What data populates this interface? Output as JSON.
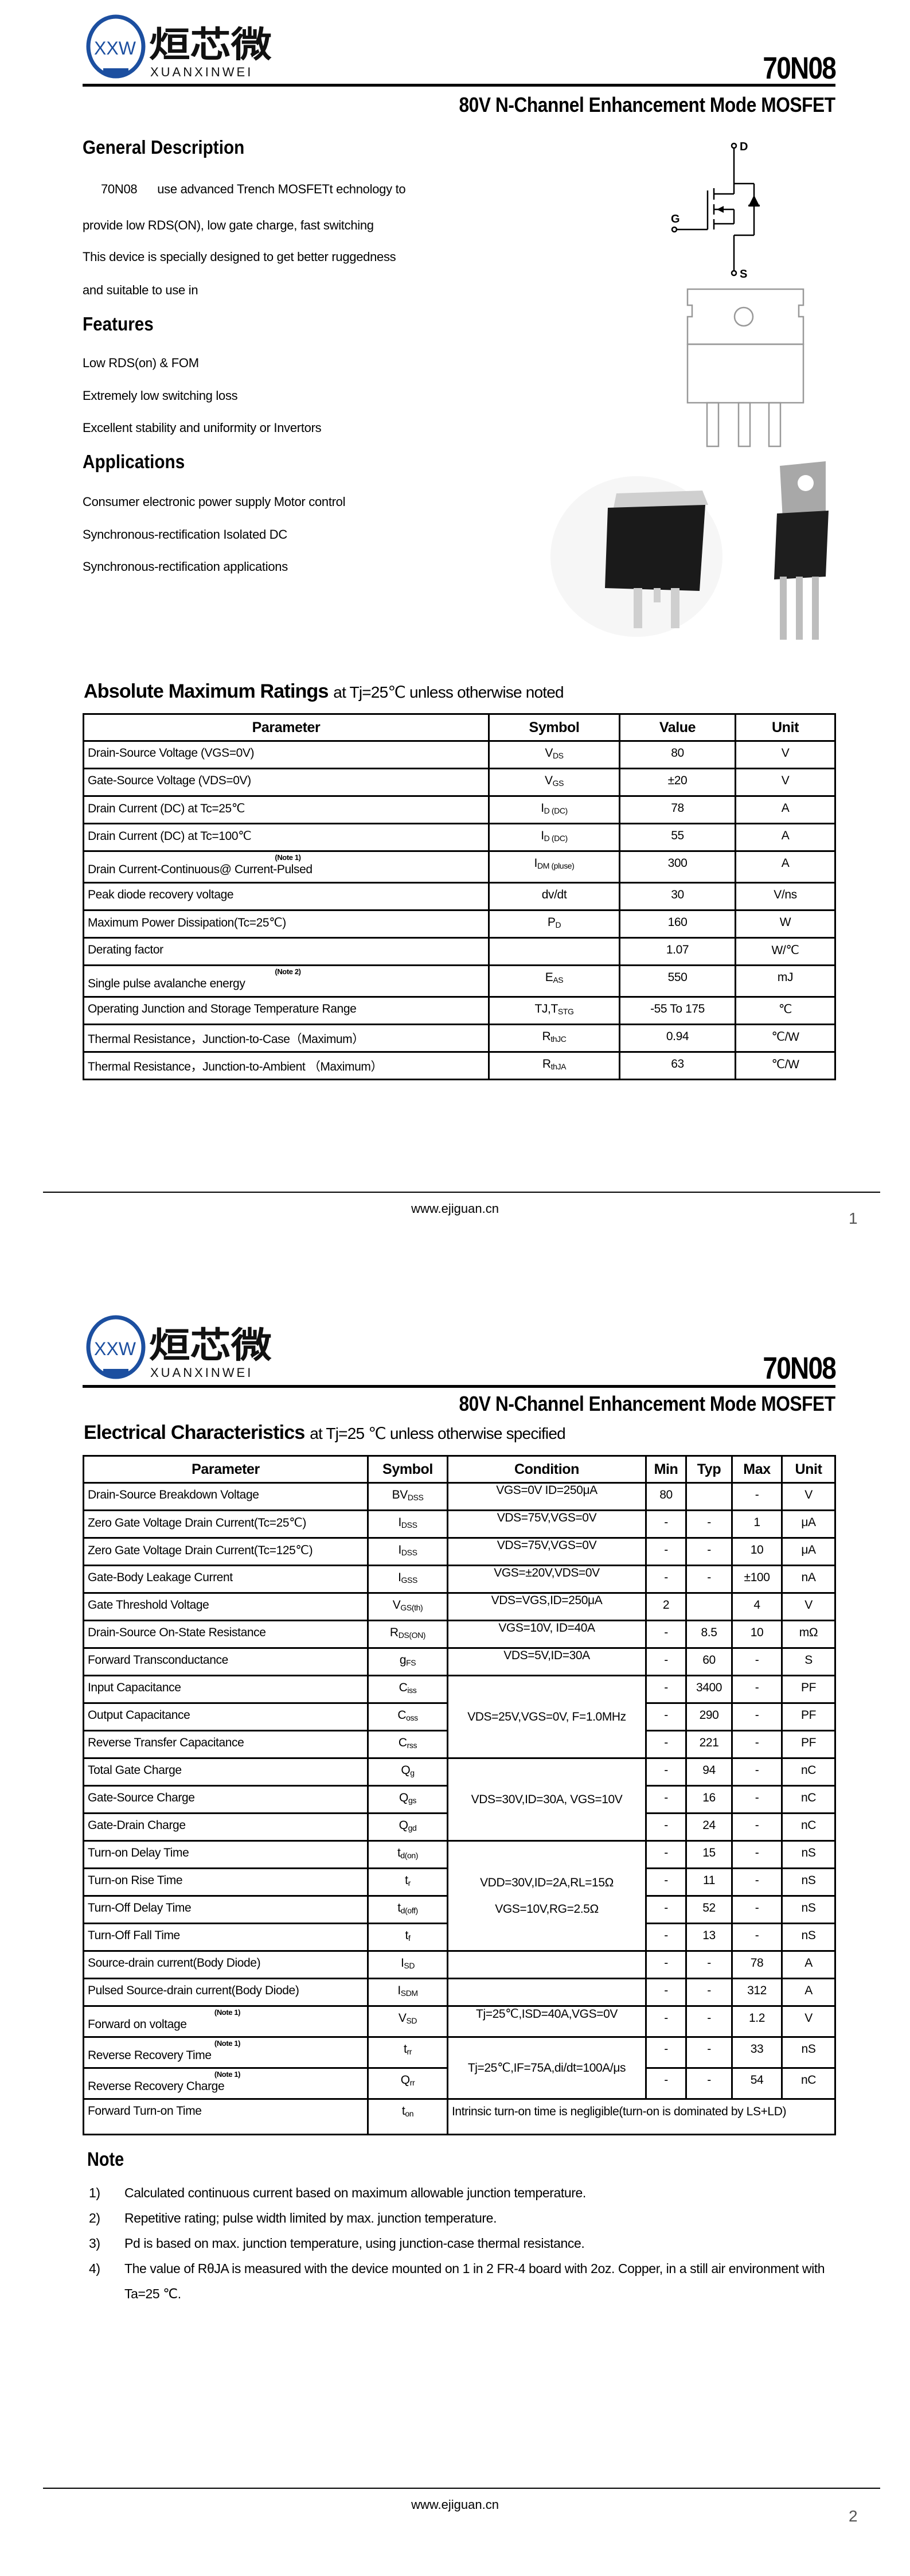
{
  "brand": {
    "logo_text": "XXW",
    "name_cn": "烜芯微",
    "name_en": "XUANXINWEI",
    "colors": {
      "blue": "#1c4fa0",
      "green": "#3aa845"
    }
  },
  "part_number": "70N08",
  "subtitle": "80V N-Channel Enhancement Mode MOSFET",
  "general": {
    "title": "General Description",
    "lines": [
      "70N08      use advanced Trench MOSFETt echnology to",
      "provide low RDS(ON), low gate charge, fast  switching",
      "This device is specially designed to get better ruggedness",
      "and suitable to use in"
    ]
  },
  "features": {
    "title": "Features",
    "items": [
      "Low RDS(on) & FOM",
      "Extremely low switching loss",
      "Excellent stability and uniformity or Invertors"
    ]
  },
  "applications": {
    "title": "Applications",
    "items": [
      "Consumer electronic power supply Motor control",
      "Synchronous-rectification Isolated DC",
      "Synchronous-rectification applications"
    ]
  },
  "schematic": {
    "d": "D",
    "g": "G",
    "s": "S"
  },
  "amr": {
    "title": "Absolute Maximum Ratings",
    "cond": "at Tj=25℃ unless otherwise noted",
    "headers": [
      "Parameter",
      "Symbol",
      "Value",
      "Unit"
    ],
    "rows": [
      {
        "param": "Drain-Source Voltage (VGS=0V)",
        "sym": "V",
        "sub": "DS",
        "value": "80",
        "unit": "V"
      },
      {
        "param": "Gate-Source Voltage (VDS=0V)",
        "sym": "V",
        "sub": "GS",
        "value": "±20",
        "unit": "V"
      },
      {
        "param": "Drain Current (DC) at Tc=25℃",
        "sym": "I",
        "sub": "D (DC)",
        "value": "78",
        "unit": "A"
      },
      {
        "param": "Drain Current (DC) at Tc=100℃",
        "sym": "I",
        "sub": "D (DC)",
        "value": "55",
        "unit": "A"
      },
      {
        "param": "Drain Current-Continuous@ Current-Pulsed",
        "note": "(Note 1)",
        "sym": "I",
        "sub": "DM (pluse)",
        "value": "300",
        "unit": "A"
      },
      {
        "param": "Peak diode recovery voltage",
        "sym": "dv/dt",
        "sub": "",
        "value": "30",
        "unit": "V/ns"
      },
      {
        "param": "Maximum Power Dissipation(Tc=25℃)",
        "sym": "P",
        "sub": "D",
        "value": "160",
        "unit": "W"
      },
      {
        "param": "Derating factor",
        "sym": "",
        "sub": "",
        "value": "1.07",
        "unit": "W/℃"
      },
      {
        "param": "Single pulse avalanche energy",
        "note": "(Note 2)",
        "sym": "E",
        "sub": "AS",
        "value": "550",
        "unit": "mJ"
      },
      {
        "param": "Operating Junction and Storage Temperature Range",
        "sym": "TJ,T",
        "sub": "STG",
        "value": "-55 To 175",
        "unit": "℃"
      },
      {
        "param": "Thermal Resistance，Junction-to-Case（Maximum）",
        "sym": "R",
        "sub": "thJC",
        "value": "0.94",
        "unit": "℃/W"
      },
      {
        "param": "Thermal Resistance，Junction-to-Ambient （Maximum）",
        "sym": "R",
        "sub": "thJA",
        "value": "63",
        "unit": "℃/W"
      }
    ]
  },
  "footer": {
    "url": "www.ejiguan.cn",
    "page1": "1",
    "page2": "2"
  },
  "ec": {
    "title": "Electrical Characteristics",
    "cond": "at Tj=25 ℃ unless otherwise specified",
    "headers": [
      "Parameter",
      "Symbol",
      "Condition",
      "Min",
      "Typ",
      "Max",
      "Unit"
    ],
    "rows": [
      {
        "param": "Drain-Source Breakdown Voltage",
        "sym": "BV",
        "sub": "DSS",
        "cond": "VGS=0V ID=250μA",
        "span": 1,
        "min": "80",
        "typ": "",
        "max": "-",
        "unit": "V"
      },
      {
        "param": "Zero Gate Voltage Drain Current(Tc=25℃)",
        "sym": "I",
        "sub": "DSS",
        "cond": "VDS=75V,VGS=0V",
        "span": 1,
        "min": "-",
        "typ": "-",
        "max": "1",
        "unit": "μA"
      },
      {
        "param": "Zero Gate Voltage Drain Current(Tc=125℃)",
        "sym": "I",
        "sub": "DSS",
        "cond": "VDS=75V,VGS=0V",
        "span": 1,
        "min": "-",
        "typ": "-",
        "max": "10",
        "unit": "μA"
      },
      {
        "param": "Gate-Body Leakage Current",
        "sym": "I",
        "sub": "GSS",
        "cond": "VGS=±20V,VDS=0V",
        "span": 1,
        "min": "-",
        "typ": "-",
        "max": "±100",
        "unit": "nA"
      },
      {
        "param": "Gate Threshold Voltage",
        "sym": "V",
        "sub": "GS(th)",
        "cond": "VDS=VGS,ID=250μA",
        "span": 1,
        "min": "2",
        "typ": "",
        "max": "4",
        "unit": "V"
      },
      {
        "param": "Drain-Source On-State Resistance",
        "sym": "R",
        "sub": "DS(ON)",
        "cond": "VGS=10V, ID=40A",
        "span": 1,
        "min": "-",
        "typ": "8.5",
        "max": "10",
        "unit": "mΩ"
      },
      {
        "param": "Forward Transconductance",
        "sym": "g",
        "sub": "FS",
        "cond": "VDS=5V,ID=30A",
        "span": 1,
        "min": "-",
        "typ": "60",
        "max": "-",
        "unit": "S"
      },
      {
        "param": "Input Capacitance",
        "sym": "C",
        "sub": "iss",
        "cond": "VDS=25V,VGS=0V, F=1.0MHz",
        "span": 3,
        "min": "-",
        "typ": "3400",
        "max": "-",
        "unit": "PF"
      },
      {
        "param": "Output Capacitance",
        "sym": "C",
        "sub": "oss",
        "min": "-",
        "typ": "290",
        "max": "-",
        "unit": "PF"
      },
      {
        "param": "Reverse Transfer Capacitance",
        "sym": "C",
        "sub": "rss",
        "min": "-",
        "typ": "221",
        "max": "-",
        "unit": "PF"
      },
      {
        "param": "Total Gate Charge",
        "sym": "Q",
        "sub": "g",
        "cond": "VDS=30V,ID=30A, VGS=10V",
        "span": 3,
        "min": "-",
        "typ": "94",
        "max": "-",
        "unit": "nC"
      },
      {
        "param": "Gate-Source Charge",
        "sym": "Q",
        "sub": "gs",
        "min": "-",
        "typ": "16",
        "max": "-",
        "unit": "nC"
      },
      {
        "param": "Gate-Drain Charge",
        "sym": "Q",
        "sub": "gd",
        "min": "-",
        "typ": "24",
        "max": "-",
        "unit": "nC"
      },
      {
        "param": "Turn-on Delay Time",
        "sym": "t",
        "sub": "d(on)",
        "cond": "VDD=30V,ID=2A,RL=15Ω VGS=10V,RG=2.5Ω",
        "span": 4,
        "min": "-",
        "typ": "15",
        "max": "-",
        "unit": "nS"
      },
      {
        "param": "Turn-on Rise Time",
        "sym": "t",
        "sub": "r",
        "min": "-",
        "typ": "11",
        "max": "-",
        "unit": "nS"
      },
      {
        "param": "Turn-Off Delay Time",
        "sym": "t",
        "sub": "d(off)",
        "min": "-",
        "typ": "52",
        "max": "-",
        "unit": "nS"
      },
      {
        "param": "Turn-Off Fall Time",
        "sym": "t",
        "sub": "f",
        "min": "-",
        "typ": "13",
        "max": "-",
        "unit": "nS"
      },
      {
        "param": "Source-drain current(Body Diode)",
        "sym": "I",
        "sub": "SD",
        "cond": "",
        "span": 1,
        "min": "-",
        "typ": "-",
        "max": "78",
        "unit": "A"
      },
      {
        "param": "Pulsed Source-drain current(Body Diode)",
        "sym": "I",
        "sub": "SDM",
        "cond": "",
        "span": 1,
        "min": "-",
        "typ": "-",
        "max": "312",
        "unit": "A"
      },
      {
        "param": "Forward on voltage",
        "note": "(Note 1)",
        "sym": "V",
        "sub": "SD",
        "cond": "Tj=25℃,ISD=40A,VGS=0V",
        "span": 1,
        "min": "-",
        "typ": "-",
        "max": "1.2",
        "unit": "V"
      },
      {
        "param": "Reverse Recovery Time",
        "note": "(Note 1)",
        "sym": "t",
        "sub": "rr",
        "cond": "Tj=25℃,IF=75A,di/dt=100A/μs",
        "span": 2,
        "min": "-",
        "typ": "-",
        "max": "33",
        "unit": "nS"
      },
      {
        "param": "Reverse Recovery Charge",
        "note": "(Note 1)",
        "sym": "Q",
        "sub": "rr",
        "min": "-",
        "typ": "-",
        "max": "54",
        "unit": "nC"
      },
      {
        "param": "Forward Turn-on Time",
        "sym": "t",
        "sub": "on",
        "cond": "Intrinsic turn-on time is negligible(turn-on is dominated by LS+LD)",
        "span": 1,
        "wide": true
      }
    ]
  },
  "notes": {
    "title": "Note",
    "items": [
      {
        "n": "1)",
        "text": "Calculated continuous current based on maximum allowable junction temperature."
      },
      {
        "n": "2)",
        "text": "Repetitive rating; pulse width limited by max. junction temperature."
      },
      {
        "n": "3)",
        "text": "Pd is based on max. junction temperature, using junction-case thermal resistance."
      },
      {
        "n": "4)",
        "text": "The value of RθJA is measured with the device mounted on 1 in 2 FR-4 board with 2oz. Copper, in a still air environment with Ta=25 ℃."
      }
    ]
  }
}
